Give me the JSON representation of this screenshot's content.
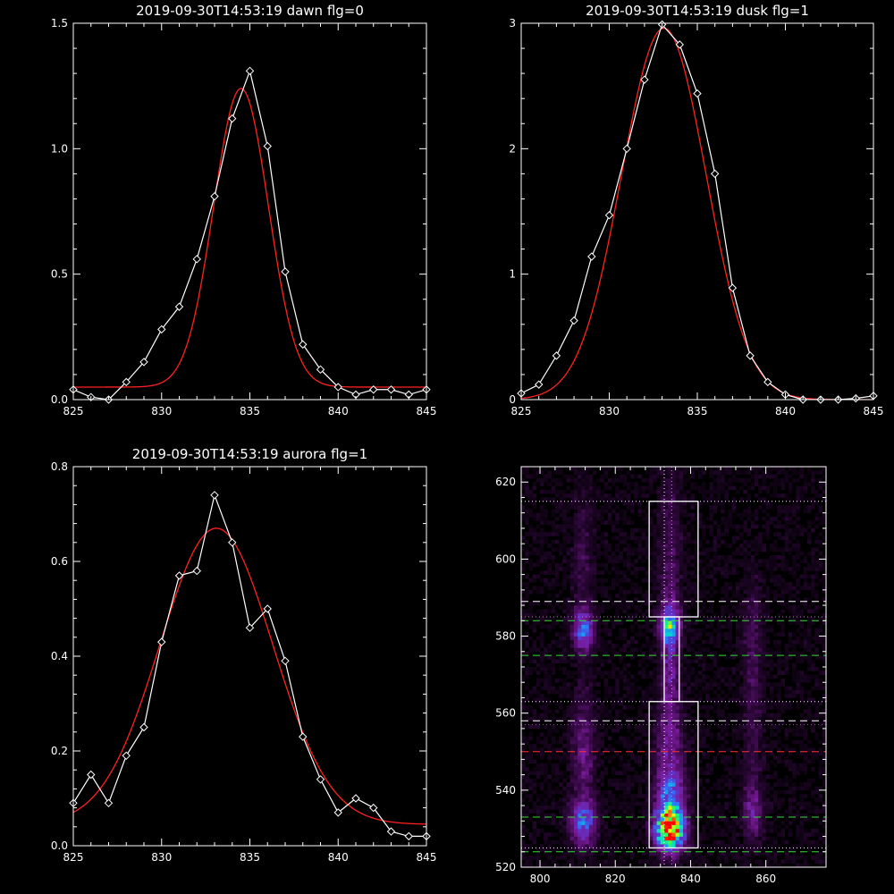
{
  "colors": {
    "background": "#000000",
    "axis": "#ffffff",
    "data_line": "#ffffff",
    "fit_line": "#ff2020",
    "guide_white": "#ffffff",
    "guide_green": "#33dd33",
    "guide_red": "#ff3030",
    "guide_magenta": "#ff66ff"
  },
  "chart_data": [
    {
      "type": "line",
      "title": "2019-09-30T14:53:19 dawn flg=0",
      "xlim": [
        825,
        845
      ],
      "ylim": [
        0,
        1.5
      ],
      "x_ticks": [
        "825",
        "830",
        "835",
        "840",
        "845"
      ],
      "y_ticks": [
        "0.0",
        "0.5",
        "1.0",
        "1.5"
      ],
      "series": [
        {
          "role": "measured",
          "marker": "diamond",
          "x": [
            825,
            826,
            827,
            828,
            829,
            830,
            831,
            832,
            833,
            834,
            835,
            836,
            837,
            838,
            839,
            840,
            841,
            842,
            843,
            844,
            845
          ],
          "y": [
            0.04,
            0.01,
            0.0,
            0.07,
            0.15,
            0.28,
            0.37,
            0.56,
            0.81,
            1.12,
            1.31,
            1.01,
            0.51,
            0.22,
            0.12,
            0.05,
            0.02,
            0.04,
            0.04,
            0.02,
            0.04
          ]
        },
        {
          "role": "fit",
          "shape": "gaussian",
          "center": 834.5,
          "sigma": 1.55,
          "amplitude": 1.19,
          "baseline": 0.05
        }
      ]
    },
    {
      "type": "line",
      "title": "2019-09-30T14:53:19 dusk flg=1",
      "xlim": [
        825,
        845
      ],
      "ylim": [
        0,
        3
      ],
      "x_ticks": [
        "825",
        "830",
        "835",
        "840",
        "845"
      ],
      "y_ticks": [
        "0",
        "1",
        "2",
        "3"
      ],
      "series": [
        {
          "role": "measured",
          "marker": "diamond",
          "x": [
            825,
            826,
            827,
            828,
            829,
            830,
            831,
            832,
            833,
            834,
            835,
            836,
            837,
            838,
            839,
            840,
            841,
            842,
            843,
            844,
            845
          ],
          "y": [
            0.05,
            0.12,
            0.35,
            0.63,
            1.14,
            1.47,
            2.0,
            2.55,
            2.99,
            2.83,
            2.44,
            1.8,
            0.89,
            0.35,
            0.14,
            0.04,
            0.0,
            0.0,
            0.0,
            0.01,
            0.03
          ]
        },
        {
          "role": "fit",
          "shape": "gaussian",
          "center": 833.1,
          "sigma": 2.4,
          "amplitude": 2.96,
          "baseline": 0.0
        }
      ]
    },
    {
      "type": "line",
      "title": "2019-09-30T14:53:19 aurora flg=1",
      "xlim": [
        825,
        845
      ],
      "ylim": [
        0,
        0.8
      ],
      "x_ticks": [
        "825",
        "830",
        "835",
        "840",
        "845"
      ],
      "y_ticks": [
        "0.0",
        "0.2",
        "0.4",
        "0.6",
        "0.8"
      ],
      "series": [
        {
          "role": "measured",
          "marker": "diamond",
          "x": [
            825,
            826,
            827,
            828,
            829,
            830,
            831,
            832,
            833,
            834,
            835,
            836,
            837,
            838,
            839,
            840,
            841,
            842,
            843,
            844,
            845
          ],
          "y": [
            0.09,
            0.15,
            0.09,
            0.19,
            0.25,
            0.43,
            0.57,
            0.58,
            0.74,
            0.64,
            0.46,
            0.5,
            0.39,
            0.23,
            0.14,
            0.07,
            0.1,
            0.08,
            0.03,
            0.02,
            0.02
          ]
        },
        {
          "role": "fit",
          "shape": "gaussian",
          "center": 833.1,
          "sigma": 3.2,
          "amplitude": 0.625,
          "baseline": 0.045
        }
      ]
    },
    {
      "type": "heatmap",
      "xlim": [
        795,
        876
      ],
      "ylim": [
        520,
        624
      ],
      "x_ticks": [
        "800",
        "820",
        "840",
        "860"
      ],
      "y_ticks": [
        "520",
        "540",
        "560",
        "580",
        "600",
        "620"
      ],
      "colormap": [
        "#000000",
        "#3a0a4a",
        "#7a1a9a",
        "#5a3ad0",
        "#2a7aff",
        "#00ddcc",
        "#40ff40",
        "#ffff00",
        "#ff0000"
      ],
      "hotspots": [
        {
          "x": 834,
          "y": 529,
          "sx": 2.5,
          "sy": 3.5,
          "v": 1.0
        },
        {
          "x": 834,
          "y": 537,
          "sx": 2.5,
          "sy": 5.0,
          "v": 0.38
        },
        {
          "x": 834,
          "y": 582,
          "sx": 1.8,
          "sy": 3.0,
          "v": 0.45
        },
        {
          "x": 834,
          "y": 575,
          "sx": 1.6,
          "sy": 12.0,
          "v": 0.2
        },
        {
          "x": 834,
          "y": 605,
          "sx": 2.0,
          "sy": 15.0,
          "v": 0.1
        },
        {
          "x": 834,
          "y": 550,
          "sx": 2.5,
          "sy": 10.0,
          "v": 0.18
        },
        {
          "x": 811,
          "y": 581,
          "sx": 1.8,
          "sy": 3.5,
          "v": 0.42
        },
        {
          "x": 811,
          "y": 531,
          "sx": 2.3,
          "sy": 4.0,
          "v": 0.38
        },
        {
          "x": 811,
          "y": 550,
          "sx": 2.0,
          "sy": 10.0,
          "v": 0.18
        },
        {
          "x": 811,
          "y": 600,
          "sx": 2.0,
          "sy": 12.0,
          "v": 0.08
        },
        {
          "x": 856,
          "y": 534,
          "sx": 1.8,
          "sy": 5.0,
          "v": 0.2
        },
        {
          "x": 856,
          "y": 580,
          "sx": 1.8,
          "sy": 10.0,
          "v": 0.1
        },
        {
          "x": 856,
          "y": 555,
          "sx": 1.8,
          "sy": 12.0,
          "v": 0.08
        }
      ],
      "boxes": [
        {
          "x": [
            829,
            842
          ],
          "y": [
            525,
            563
          ]
        },
        {
          "x": [
            833,
            837
          ],
          "y": [
            563,
            585
          ]
        },
        {
          "x": [
            829,
            842
          ],
          "y": [
            585,
            615
          ]
        }
      ],
      "hlines": [
        {
          "y": 615,
          "color": "guide_white",
          "dash": "dotted"
        },
        {
          "y": 589,
          "color": "guide_white",
          "dash": "dashed"
        },
        {
          "y": 585,
          "color": "guide_green",
          "dash": "dotted"
        },
        {
          "y": 584,
          "color": "guide_green",
          "dash": "dashed"
        },
        {
          "y": 575,
          "color": "guide_green",
          "dash": "dashed"
        },
        {
          "y": 563,
          "color": "guide_white",
          "dash": "dotted"
        },
        {
          "y": 558,
          "color": "guide_white",
          "dash": "dashed"
        },
        {
          "y": 557,
          "color": "guide_red",
          "dash": "dotted"
        },
        {
          "y": 550,
          "color": "guide_red",
          "dash": "dashed"
        },
        {
          "y": 533,
          "color": "guide_green",
          "dash": "dashed"
        },
        {
          "y": 525,
          "color": "guide_white",
          "dash": "dotted"
        },
        {
          "y": 524,
          "color": "guide_green",
          "dash": "dashed"
        }
      ],
      "vlines": [
        {
          "x": 833,
          "color": "guide_white",
          "dash": "dotted"
        },
        {
          "x": 835,
          "color": "guide_magenta",
          "dash": "dotted"
        }
      ]
    }
  ]
}
